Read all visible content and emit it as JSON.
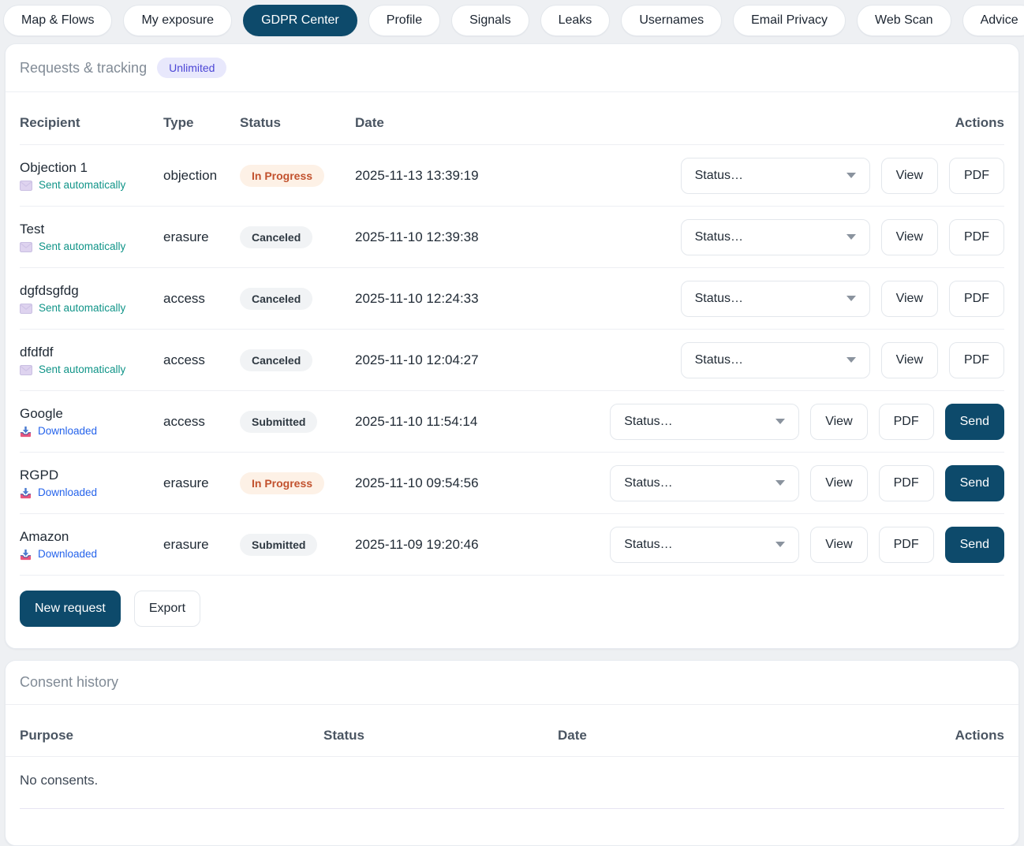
{
  "nav": {
    "tabs": [
      {
        "label": "Map & Flows",
        "active": false
      },
      {
        "label": "My exposure",
        "active": false
      },
      {
        "label": "GDPR Center",
        "active": true
      },
      {
        "label": "Profile",
        "active": false
      },
      {
        "label": "Signals",
        "active": false
      },
      {
        "label": "Leaks",
        "active": false
      },
      {
        "label": "Usernames",
        "active": false
      },
      {
        "label": "Email Privacy",
        "active": false
      },
      {
        "label": "Web Scan",
        "active": false
      },
      {
        "label": "Advice",
        "active": false
      }
    ]
  },
  "requests_panel": {
    "title": "Requests & tracking",
    "plan_badge": "Unlimited",
    "columns": {
      "recipient": "Recipient",
      "type": "Type",
      "status": "Status",
      "date": "Date",
      "actions": "Actions"
    },
    "status_select_placeholder": "Status…",
    "action_labels": {
      "view": "View",
      "pdf": "PDF",
      "send": "Send"
    },
    "rows": [
      {
        "recipient": "Objection 1",
        "delivery": "Sent automatically",
        "delivery_icon": "envelope-icon",
        "type": "objection",
        "status": "In Progress",
        "variant": "warning",
        "date": "2025-11-13 13:39:19",
        "can_send": false
      },
      {
        "recipient": "Test",
        "delivery": "Sent automatically",
        "delivery_icon": "envelope-icon",
        "type": "erasure",
        "status": "Canceled",
        "variant": "neutral",
        "date": "2025-11-10 12:39:38",
        "can_send": false
      },
      {
        "recipient": "dgfdsgfdg",
        "delivery": "Sent automatically",
        "delivery_icon": "envelope-icon",
        "type": "access",
        "status": "Canceled",
        "variant": "neutral",
        "date": "2025-11-10 12:24:33",
        "can_send": false
      },
      {
        "recipient": "dfdfdf",
        "delivery": "Sent automatically",
        "delivery_icon": "envelope-icon",
        "type": "access",
        "status": "Canceled",
        "variant": "neutral",
        "date": "2025-11-10 12:04:27",
        "can_send": false
      },
      {
        "recipient": "Google",
        "delivery": "Downloaded",
        "delivery_icon": "download-icon",
        "type": "access",
        "status": "Submitted",
        "variant": "neutral",
        "date": "2025-11-10 11:54:14",
        "can_send": true
      },
      {
        "recipient": "RGPD",
        "delivery": "Downloaded",
        "delivery_icon": "download-icon",
        "type": "erasure",
        "status": "In Progress",
        "variant": "warning",
        "date": "2025-11-10 09:54:56",
        "can_send": true
      },
      {
        "recipient": "Amazon",
        "delivery": "Downloaded",
        "delivery_icon": "download-icon",
        "type": "erasure",
        "status": "Submitted",
        "variant": "neutral",
        "date": "2025-11-09 19:20:46",
        "can_send": true
      }
    ],
    "footer": {
      "new_request": "New request",
      "export": "Export"
    }
  },
  "consent_panel": {
    "title": "Consent history",
    "columns": {
      "purpose": "Purpose",
      "status": "Status",
      "date": "Date",
      "actions": "Actions"
    },
    "empty_text": "No consents."
  },
  "colors": {
    "accent": "#0d4a6b",
    "page_bg": "#eef0f3",
    "warning_bg": "#fdf1e6",
    "warning_text": "#c2522e",
    "neutral_bg": "#f1f3f5",
    "neutral_text": "#2f3942",
    "sent_text": "#109488",
    "downloaded_text": "#2563eb",
    "unlimited_bg": "#e8e8fc",
    "unlimited_text": "#4c46d6"
  }
}
